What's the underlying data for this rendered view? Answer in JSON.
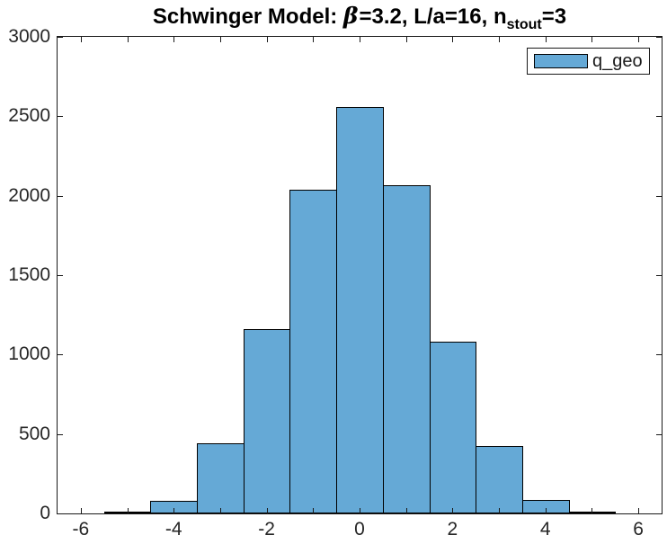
{
  "title": {
    "part1": "Schwinger Model: ",
    "beta": "β",
    "part2": "=3.2, L/a=16, n",
    "sub": "stout",
    "part3": "=3"
  },
  "legend": {
    "label": "q_geo"
  },
  "colors": {
    "bar_fill": "#65A9D6",
    "bar_edge": "#000000",
    "axis_box": "#1a1a1a",
    "tick_label": "#262626",
    "title": "#000000",
    "background": "#ffffff"
  },
  "chart_data": {
    "type": "bar",
    "subtype": "histogram",
    "title": "Schwinger Model: β=3.2, L/a=16, n_stout=3",
    "xlabel": "",
    "ylabel": "",
    "xlim": [
      -6.5,
      6.5
    ],
    "ylim": [
      0,
      3000
    ],
    "grid": false,
    "legend_entries": [
      "q_geo"
    ],
    "legend_position": "northeast",
    "x_tick_positions": [
      -6,
      -5,
      -4,
      -3,
      -2,
      -1,
      0,
      1,
      2,
      3,
      4,
      5,
      6
    ],
    "x_tick_labels": [
      "-6",
      "",
      "-4",
      "",
      "-2",
      "",
      "0",
      "",
      "2",
      "",
      "4",
      "",
      "6"
    ],
    "y_tick_positions": [
      0,
      500,
      1000,
      1500,
      2000,
      2500,
      3000
    ],
    "y_tick_labels": [
      "0",
      "500",
      "1000",
      "1500",
      "2000",
      "2500",
      "3000"
    ],
    "series": [
      {
        "name": "q_geo",
        "bin_width": 1,
        "bin_centers": [
          -5,
          -4,
          -3,
          -2,
          -1,
          0,
          1,
          2,
          3,
          4,
          5
        ],
        "counts": [
          10,
          80,
          440,
          1160,
          2040,
          2560,
          2065,
          1080,
          425,
          85,
          10
        ]
      }
    ]
  }
}
